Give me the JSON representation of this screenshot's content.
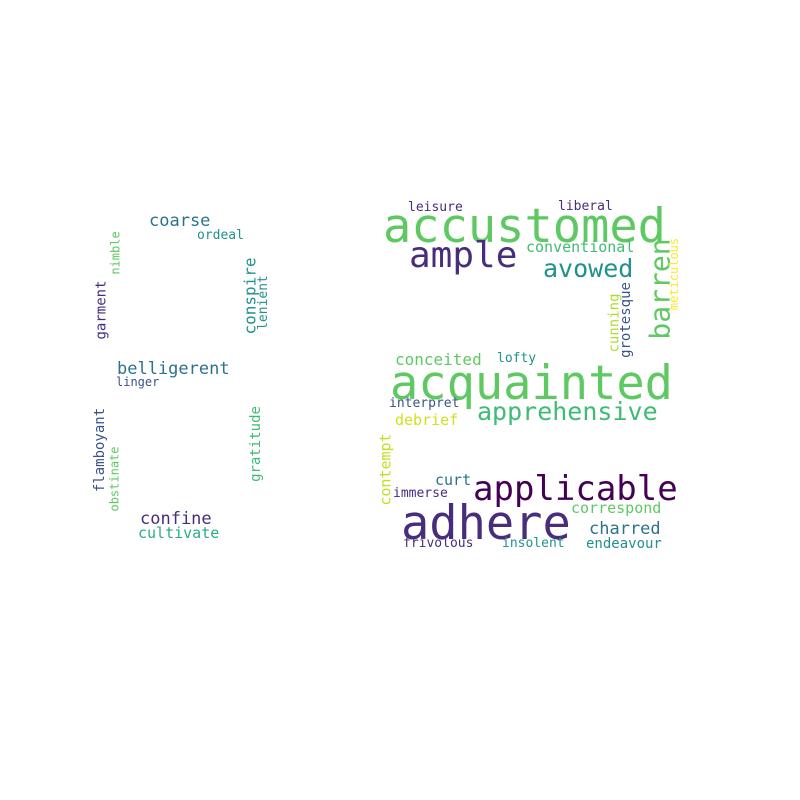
{
  "colors": {
    "background": "#ffffff",
    "viridis_dark_purple": "#440154",
    "viridis_indigo": "#472d7b",
    "viridis_blue": "#3b528b",
    "viridis_steel": "#2c728e",
    "viridis_teal": "#21918c",
    "viridis_green_teal": "#28ae80",
    "viridis_green": "#5ec962",
    "viridis_lime": "#addc30",
    "viridis_yellow": "#fde725"
  },
  "words": [
    {
      "text": "accustomed",
      "color": "#5ec962"
    },
    {
      "text": "acquainted",
      "color": "#5ec962"
    },
    {
      "text": "adhere",
      "color": "#472d7b"
    },
    {
      "text": "applicable",
      "color": "#440154"
    },
    {
      "text": "ample",
      "color": "#472d7b"
    },
    {
      "text": "apprehensive",
      "color": "#3fbc73"
    },
    {
      "text": "avowed",
      "color": "#21918c"
    },
    {
      "text": "barren",
      "color": "#5ec962"
    },
    {
      "text": "conventional",
      "color": "#3fbc73"
    },
    {
      "text": "leisure",
      "color": "#472d7b"
    },
    {
      "text": "liberal",
      "color": "#472d7b"
    },
    {
      "text": "meticulous",
      "color": "#fde725"
    },
    {
      "text": "cunning",
      "color": "#addc30"
    },
    {
      "text": "grotesque",
      "color": "#3b528b"
    },
    {
      "text": "conceited",
      "color": "#5ec962"
    },
    {
      "text": "lofty",
      "color": "#21918c"
    },
    {
      "text": "interpret",
      "color": "#3b528b"
    },
    {
      "text": "debrief",
      "color": "#d0e11c"
    },
    {
      "text": "contempt",
      "color": "#c2df23"
    },
    {
      "text": "curt",
      "color": "#2c728e"
    },
    {
      "text": "immerse",
      "color": "#472d7b"
    },
    {
      "text": "correspond",
      "color": "#5ec962"
    },
    {
      "text": "charred",
      "color": "#2c728e"
    },
    {
      "text": "frivolous",
      "color": "#472d7b"
    },
    {
      "text": "insolent",
      "color": "#21918c"
    },
    {
      "text": "endeavour",
      "color": "#21918c"
    },
    {
      "text": "coarse",
      "color": "#2c728e"
    },
    {
      "text": "ordeal",
      "color": "#21918c"
    },
    {
      "text": "nimble",
      "color": "#5ec962"
    },
    {
      "text": "garment",
      "color": "#472d7b"
    },
    {
      "text": "conspire",
      "color": "#21918c"
    },
    {
      "text": "lenient",
      "color": "#21918c"
    },
    {
      "text": "belligerent",
      "color": "#2c728e"
    },
    {
      "text": "linger",
      "color": "#3b528b"
    },
    {
      "text": "flamboyant",
      "color": "#3b528b"
    },
    {
      "text": "obstinate",
      "color": "#5ec962"
    },
    {
      "text": "gratitude",
      "color": "#3fbc73"
    },
    {
      "text": "confine",
      "color": "#472d7b"
    },
    {
      "text": "cultivate",
      "color": "#28ae80"
    }
  ]
}
